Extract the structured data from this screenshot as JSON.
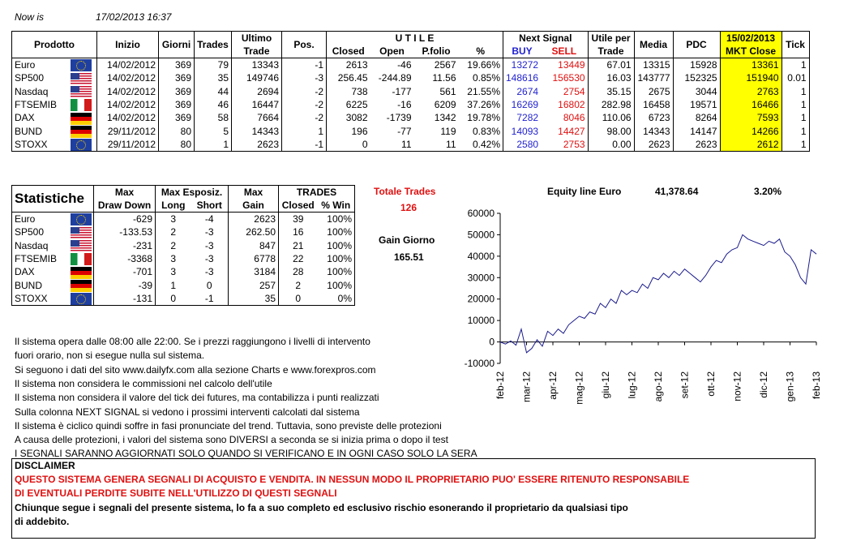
{
  "header": {
    "now_label": "Now is",
    "now_value": "17/02/2013 16:37"
  },
  "main_table": {
    "headers": {
      "prodotto": "Prodotto",
      "inizio": "Inizio",
      "giorni": "Giorni",
      "trades": "Trades",
      "ultimo1": "Ultimo",
      "ultimo2": "Trade",
      "pos": "Pos.",
      "utile": "U T I L E",
      "closed": "Closed",
      "open": "Open",
      "pfolio": "P.folio",
      "pct": "%",
      "next_signal": "Next Signal",
      "buy": "BUY",
      "sell": "SELL",
      "utile_per1": "Utile per",
      "utile_per2": "Trade",
      "media": "Media",
      "pdc": "PDC",
      "mkt_date": "15/02/2013",
      "mkt_close": "MKT Close",
      "tick": "Tick"
    },
    "rows": [
      {
        "name": "Euro",
        "flag": "eu",
        "inizio": "14/02/2012",
        "giorni": "369",
        "trades": "79",
        "ultimo": "13343",
        "pos": "-1",
        "closed": "2613",
        "open": "-46",
        "pfolio": "2567",
        "pct": "19.66%",
        "buy": "13272",
        "sell": "13449",
        "utile": "67.01",
        "media": "13315",
        "pdc": "15928",
        "mkt": "13361",
        "tick": "1"
      },
      {
        "name": "SP500",
        "flag": "us",
        "inizio": "14/02/2012",
        "giorni": "369",
        "trades": "35",
        "ultimo": "149746",
        "pos": "-3",
        "closed": "256.45",
        "open": "-244.89",
        "pfolio": "11.56",
        "pct": "0.85%",
        "buy": "148616",
        "sell": "156530",
        "utile": "16.03",
        "media": "143777",
        "pdc": "152325",
        "mkt": "151940",
        "tick": "0.01"
      },
      {
        "name": "Nasdaq",
        "flag": "us",
        "inizio": "14/02/2012",
        "giorni": "369",
        "trades": "44",
        "ultimo": "2694",
        "pos": "-2",
        "closed": "738",
        "open": "-177",
        "pfolio": "561",
        "pct": "21.55%",
        "buy": "2674",
        "sell": "2754",
        "utile": "35.15",
        "media": "2675",
        "pdc": "3044",
        "mkt": "2763",
        "tick": "1"
      },
      {
        "name": "FTSEMIB",
        "flag": "it",
        "inizio": "14/02/2012",
        "giorni": "369",
        "trades": "46",
        "ultimo": "16447",
        "pos": "-2",
        "closed": "6225",
        "open": "-16",
        "pfolio": "6209",
        "pct": "37.26%",
        "buy": "16269",
        "sell": "16802",
        "utile": "282.98",
        "media": "16458",
        "pdc": "19571",
        "mkt": "16466",
        "tick": "1"
      },
      {
        "name": "DAX",
        "flag": "de",
        "inizio": "14/02/2012",
        "giorni": "369",
        "trades": "58",
        "ultimo": "7664",
        "pos": "-2",
        "closed": "3082",
        "open": "-1739",
        "pfolio": "1342",
        "pct": "19.78%",
        "buy": "7282",
        "sell": "8046",
        "utile": "110.06",
        "media": "6723",
        "pdc": "8264",
        "mkt": "7593",
        "tick": "1"
      },
      {
        "name": "BUND",
        "flag": "de",
        "inizio": "29/11/2012",
        "giorni": "80",
        "trades": "5",
        "ultimo": "14343",
        "pos": "1",
        "closed": "196",
        "open": "-77",
        "pfolio": "119",
        "pct": "0.83%",
        "buy": "14093",
        "sell": "14427",
        "utile": "98.00",
        "media": "14343",
        "pdc": "14147",
        "mkt": "14266",
        "tick": "1"
      },
      {
        "name": "STOXX",
        "flag": "eu",
        "inizio": "29/11/2012",
        "giorni": "80",
        "trades": "1",
        "ultimo": "2623",
        "pos": "-1",
        "closed": "0",
        "open": "11",
        "pfolio": "11",
        "pct": "0.42%",
        "buy": "2580",
        "sell": "2753",
        "utile": "0.00",
        "media": "2623",
        "pdc": "2623",
        "mkt": "2612",
        "tick": "1"
      }
    ]
  },
  "stats_table": {
    "title": "Statistiche",
    "headers": {
      "max1": "Max",
      "max2": "Draw Down",
      "esp1": "Max Esposiz.",
      "long": "Long",
      "short": "Short",
      "gain1": "Max",
      "gain2": "Gain",
      "trades1": "TRADES",
      "closed": "Closed",
      "win": "% Win"
    },
    "rows": [
      {
        "name": "Euro",
        "flag": "eu",
        "dd": "-629",
        "long": "3",
        "short": "-4",
        "gain": "2623",
        "closed": "39",
        "win": "100%"
      },
      {
        "name": "SP500",
        "flag": "us",
        "dd": "-133.53",
        "long": "2",
        "short": "-3",
        "gain": "262.50",
        "closed": "16",
        "win": "100%"
      },
      {
        "name": "Nasdaq",
        "flag": "us",
        "dd": "-231",
        "long": "2",
        "short": "-3",
        "gain": "847",
        "closed": "21",
        "win": "100%"
      },
      {
        "name": "FTSEMIB",
        "flag": "it",
        "dd": "-3368",
        "long": "3",
        "short": "-3",
        "gain": "6778",
        "closed": "22",
        "win": "100%"
      },
      {
        "name": "DAX",
        "flag": "de",
        "dd": "-701",
        "long": "3",
        "short": "-3",
        "gain": "3184",
        "closed": "28",
        "win": "100%"
      },
      {
        "name": "BUND",
        "flag": "de",
        "dd": "-39",
        "long": "1",
        "short": "0",
        "gain": "257",
        "closed": "2",
        "win": "100%"
      },
      {
        "name": "STOXX",
        "flag": "eu",
        "dd": "-131",
        "long": "0",
        "short": "-1",
        "gain": "35",
        "closed": "0",
        "win": "0%"
      }
    ]
  },
  "totals": {
    "totale_label": "Totale Trades",
    "totale_value": "126",
    "gain_label": "Gain Giorno",
    "gain_value": "165.51",
    "equity_label": "Equity line Euro",
    "equity_value": "41,378.64",
    "equity_pct": "3.20%"
  },
  "notes": [
    "Il sistema opera dalle 08:00 alle 22:00. Se i prezzi raggiungono i livelli di intervento",
    "fuori orario, non si esegue nulla sul sistema.",
    "Si seguono i dati del sito www.dailyfx.com alla sezione Charts e www.forexpros.com",
    "Il sistema non considera le commissioni nel calcolo dell'utile",
    "Il sistema non considera il valore del tick dei futures, ma contabilizza i punti realizzati",
    "Sulla colonna NEXT SIGNAL si vedono i prossimi interventi calcolati dal sistema",
    "Il sistema è ciclico quindi soffre in fasi pronunciate del trend. Tuttavia, sono previste delle protezioni",
    "A causa delle protezioni, i valori del sistema sono DIVERSI a seconda se si inizia prima o dopo il test",
    "I SEGNALI SARANNO AGGIORNATI SOLO QUANDO SI VERIFICANO E IN OGNI CASO SOLO LA SERA"
  ],
  "disclaimer": {
    "title": "DISCLAIMER",
    "red1": "QUESTO SISTEMA GENERA SEGNALI DI ACQUISTO E VENDITA. IN NESSUN MODO IL PROPRIETARIO PUO' ESSERE RITENUTO RESPONSABILE",
    "red2": "DI EVENTUALI PERDITE SUBITE NELL'UTILIZZO DI QUESTI SEGNALI",
    "black1": "Chiunque segue i segnali del presente sistema, lo fa a suo completo ed esclusivo rischio esonerando il proprietario da qualsiasi tipo",
    "black2": "di addebito."
  },
  "chart_data": {
    "type": "line",
    "title": "",
    "xlabel": "",
    "ylabel": "",
    "ylim": [
      -10000,
      60000
    ],
    "yticks": [
      "60000",
      "50000",
      "40000",
      "30000",
      "20000",
      "10000",
      "0",
      "-10000"
    ],
    "ytick_values": [
      60000,
      50000,
      40000,
      30000,
      20000,
      10000,
      0,
      -10000
    ],
    "xticks": [
      "feb-12",
      "mar-12",
      "apr-12",
      "mag-12",
      "giu-12",
      "lug-12",
      "ago-12",
      "set-12",
      "ott-12",
      "nov-12",
      "dic-12",
      "gen-13",
      "feb-13"
    ],
    "line_color": "#1a1a8c",
    "x": [
      0,
      0.2,
      0.4,
      0.6,
      0.8,
      1,
      1.2,
      1.4,
      1.6,
      1.8,
      2,
      2.2,
      2.4,
      2.6,
      2.8,
      3,
      3.2,
      3.4,
      3.6,
      3.8,
      4,
      4.2,
      4.4,
      4.6,
      4.8,
      5,
      5.2,
      5.4,
      5.6,
      5.8,
      6,
      6.2,
      6.4,
      6.6,
      6.8,
      7,
      7.2,
      7.4,
      7.6,
      7.8,
      8,
      8.2,
      8.4,
      8.6,
      8.8,
      9,
      9.2,
      9.4,
      9.6,
      9.8,
      10,
      10.2,
      10.4,
      10.6,
      10.8,
      11,
      11.2,
      11.4,
      11.6,
      11.8,
      12
    ],
    "values": [
      0,
      -1000,
      500,
      -1500,
      6000,
      -5000,
      -3000,
      1000,
      -2000,
      5000,
      3000,
      6000,
      4000,
      8000,
      10000,
      12000,
      11000,
      14000,
      13000,
      18000,
      16000,
      20000,
      18000,
      24000,
      22000,
      24000,
      23000,
      27000,
      25000,
      30000,
      29000,
      32000,
      30000,
      33000,
      31000,
      34000,
      32000,
      30000,
      28000,
      31000,
      35000,
      38000,
      37000,
      41000,
      43000,
      44000,
      50000,
      48000,
      47000,
      46000,
      45000,
      47000,
      46000,
      48000,
      42000,
      40000,
      36000,
      30000,
      27000,
      43000,
      41000
    ]
  }
}
